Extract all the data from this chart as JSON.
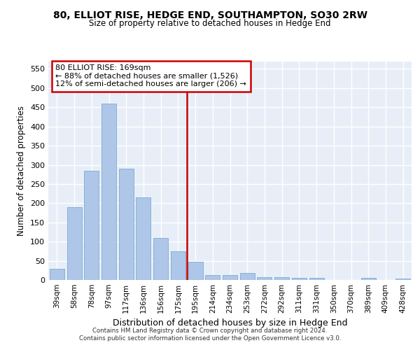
{
  "title_line1": "80, ELLIOT RISE, HEDGE END, SOUTHAMPTON, SO30 2RW",
  "title_line2": "Size of property relative to detached houses in Hedge End",
  "xlabel": "Distribution of detached houses by size in Hedge End",
  "ylabel": "Number of detached properties",
  "categories": [
    "39sqm",
    "58sqm",
    "78sqm",
    "97sqm",
    "117sqm",
    "136sqm",
    "156sqm",
    "175sqm",
    "195sqm",
    "214sqm",
    "234sqm",
    "253sqm",
    "272sqm",
    "292sqm",
    "311sqm",
    "331sqm",
    "350sqm",
    "370sqm",
    "389sqm",
    "409sqm",
    "428sqm"
  ],
  "values": [
    30,
    190,
    285,
    460,
    290,
    215,
    110,
    75,
    48,
    12,
    12,
    18,
    8,
    8,
    5,
    5,
    0,
    0,
    5,
    0,
    4
  ],
  "bar_color": "#aec6e8",
  "bar_edge_color": "#7aaad0",
  "vline_x_index": 7,
  "vline_color": "#cc0000",
  "annotation_text": "80 ELLIOT RISE: 169sqm\n← 88% of detached houses are smaller (1,526)\n12% of semi-detached houses are larger (206) →",
  "annotation_box_color": "#ffffff",
  "annotation_box_edge_color": "#cc0000",
  "ylim": [
    0,
    570
  ],
  "yticks": [
    0,
    50,
    100,
    150,
    200,
    250,
    300,
    350,
    400,
    450,
    500,
    550
  ],
  "bg_color": "#e8eef8",
  "grid_color": "#ffffff",
  "footer_line1": "Contains HM Land Registry data © Crown copyright and database right 2024.",
  "footer_line2": "Contains public sector information licensed under the Open Government Licence v3.0."
}
